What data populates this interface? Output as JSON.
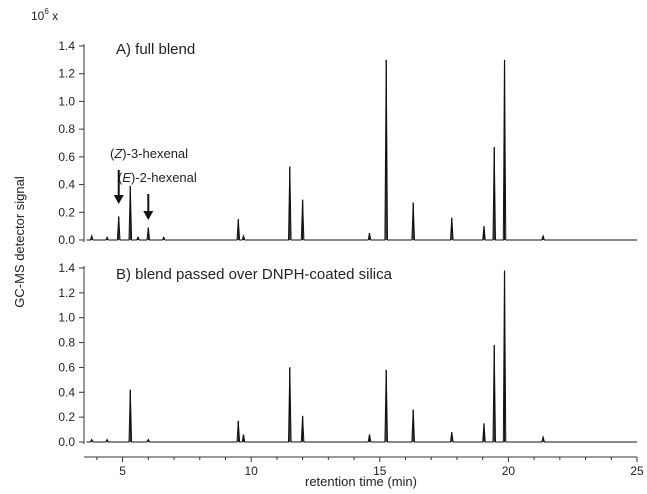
{
  "chart_data": {
    "type": "line",
    "multiplier_label": "10",
    "multiplier_exponent": "6",
    "multiplier_suffix": " x",
    "xlabel": "retention time (min)",
    "ylabel": "GC-MS detector signal",
    "xlim": [
      3.5,
      25
    ],
    "xticks": [
      5,
      10,
      15,
      20,
      25
    ],
    "panels": [
      {
        "title": "A) full blend",
        "ylim": [
          0,
          1.4
        ],
        "yticks": [
          "0.0",
          "0.2",
          "0.4",
          "0.6",
          "0.8",
          "1.0",
          "1.2",
          "1.4"
        ],
        "peaks": [
          {
            "x": 3.8,
            "y": 0.03
          },
          {
            "x": 4.4,
            "y": 0.02
          },
          {
            "x": 4.85,
            "y": 0.17
          },
          {
            "x": 5.3,
            "y": 0.39
          },
          {
            "x": 5.6,
            "y": 0.02
          },
          {
            "x": 6.0,
            "y": 0.09
          },
          {
            "x": 6.6,
            "y": 0.02
          },
          {
            "x": 9.5,
            "y": 0.15
          },
          {
            "x": 9.7,
            "y": 0.03
          },
          {
            "x": 11.5,
            "y": 0.53
          },
          {
            "x": 12.0,
            "y": 0.29
          },
          {
            "x": 14.6,
            "y": 0.05
          },
          {
            "x": 15.25,
            "y": 1.3
          },
          {
            "x": 16.3,
            "y": 0.27
          },
          {
            "x": 17.8,
            "y": 0.16
          },
          {
            "x": 19.05,
            "y": 0.1
          },
          {
            "x": 19.45,
            "y": 0.67
          },
          {
            "x": 19.85,
            "y": 1.3
          },
          {
            "x": 21.35,
            "y": 0.03
          }
        ],
        "annotations": [
          {
            "compound": "(Z)-3-hexenal",
            "prefix": "(",
            "italic": "Z",
            "suffix": ")-3-hexenal",
            "x": 4.85
          },
          {
            "compound": "(E)-2-hexenal",
            "prefix": "(",
            "italic": "E",
            "suffix": ")-2-hexenal",
            "x": 6.0
          }
        ]
      },
      {
        "title": "B) blend passed over DNPH-coated silica",
        "ylim": [
          0,
          1.4
        ],
        "yticks": [
          "0.0",
          "0.2",
          "0.4",
          "0.6",
          "0.8",
          "1.0",
          "1.2",
          "1.4"
        ],
        "peaks": [
          {
            "x": 3.8,
            "y": 0.02
          },
          {
            "x": 4.4,
            "y": 0.02
          },
          {
            "x": 5.3,
            "y": 0.42
          },
          {
            "x": 6.0,
            "y": 0.02
          },
          {
            "x": 9.5,
            "y": 0.17
          },
          {
            "x": 9.7,
            "y": 0.06
          },
          {
            "x": 11.5,
            "y": 0.6
          },
          {
            "x": 12.0,
            "y": 0.21
          },
          {
            "x": 14.6,
            "y": 0.06
          },
          {
            "x": 15.25,
            "y": 0.58
          },
          {
            "x": 16.3,
            "y": 0.26
          },
          {
            "x": 17.8,
            "y": 0.08
          },
          {
            "x": 19.05,
            "y": 0.15
          },
          {
            "x": 19.45,
            "y": 0.78
          },
          {
            "x": 19.85,
            "y": 1.38
          },
          {
            "x": 21.35,
            "y": 0.04
          }
        ]
      }
    ]
  }
}
